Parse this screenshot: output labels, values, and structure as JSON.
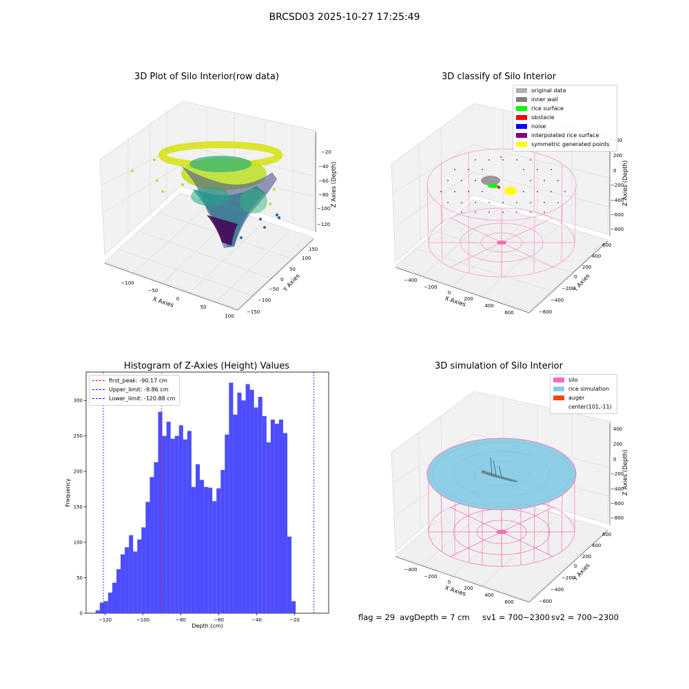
{
  "figure": {
    "suptitle": "BRCSD03 2025-10-27 17:25:49"
  },
  "footer": {
    "flag": "flag = 29",
    "avg_depth": "avgDepth = 7 cm",
    "sv1": "sv1 = 700~2300",
    "sv2": "sv2 = 700~2300"
  },
  "panel_raw": {
    "title": "3D Plot of Silo Interior(row data)",
    "xlabel": "X Axies",
    "ylabel": "Y Axies",
    "zlabel": "Z Axies (Depth)",
    "x_ticks": [
      "−100",
      "−50",
      "0",
      "50",
      "100"
    ],
    "y_ticks": [
      "150",
      "100",
      "50",
      "0",
      "−50",
      "−100",
      "−150"
    ],
    "z_ticks": [
      "−20",
      "−40",
      "−60",
      "−80",
      "−100",
      "−120"
    ]
  },
  "panel_classify": {
    "title": "3D classify of Silo Interior",
    "xlabel": "X Axies",
    "ylabel": "Y Axies",
    "zlabel": "Z Axies (Depth)",
    "x_ticks": [
      "−400",
      "−200",
      "0",
      "200",
      "400",
      "600"
    ],
    "y_ticks": [
      "600",
      "400",
      "200",
      "0",
      "−200",
      "−400",
      "−600"
    ],
    "z_ticks": [
      "400",
      "200",
      "0",
      "−200",
      "−400",
      "−600",
      "−800"
    ],
    "legend": [
      {
        "label": "original data",
        "color": "#b0b0b0"
      },
      {
        "label": "inner wall",
        "color": "#808080"
      },
      {
        "label": "rice surface",
        "color": "#00ff00"
      },
      {
        "label": "obstacle",
        "color": "#ff0000"
      },
      {
        "label": "noise",
        "color": "#0000ff"
      },
      {
        "label": "interpolated rice surface",
        "color": "#800080"
      },
      {
        "label": "symmetric generated points",
        "color": "#ffff00"
      }
    ]
  },
  "panel_sim": {
    "title": "3D simulation of Silo Interior",
    "xlabel": "X Axies",
    "ylabel": "Y Axies",
    "zlabel": "Z Axies (Depth)",
    "x_ticks": [
      "−400",
      "−200",
      "0",
      "200",
      "400",
      "600"
    ],
    "y_ticks": [
      "600",
      "400",
      "200",
      "0",
      "−200",
      "−400",
      "−600"
    ],
    "z_ticks": [
      "400",
      "200",
      "0",
      "−200",
      "−400",
      "−600",
      "−800"
    ],
    "legend": [
      {
        "label": "silo",
        "color": "#ff69b4"
      },
      {
        "label": "rice simulation",
        "color": "#87ceeb"
      },
      {
        "label": "auger",
        "color": "#ff4500"
      },
      {
        "label": "center(101,-11)",
        "color": "none"
      }
    ]
  },
  "chart_data": {
    "type": "bar",
    "title": "Histogram of Z-Axies (Height) Values",
    "xlabel": "Depth (cm)",
    "ylabel": "Frequency",
    "xlim": [
      -130,
      -2
    ],
    "ylim": [
      0,
      340
    ],
    "x_ticks": [
      -120,
      -100,
      -80,
      -60,
      -40,
      -20
    ],
    "x_tick_labels": [
      "−120",
      "−100",
      "−80",
      "−60",
      "−40",
      "−20"
    ],
    "y_ticks": [
      0,
      50,
      100,
      150,
      200,
      250,
      300
    ],
    "bar_color": "#4d4dff",
    "bins_start": -125,
    "bin_width": 2.2,
    "values": [
      4,
      15,
      17,
      29,
      43,
      62,
      83,
      93,
      110,
      87,
      104,
      121,
      157,
      192,
      213,
      284,
      250,
      270,
      246,
      250,
      265,
      245,
      257,
      178,
      210,
      188,
      178,
      177,
      158,
      176,
      202,
      252,
      325,
      280,
      311,
      300,
      323,
      315,
      290,
      305,
      278,
      241,
      273,
      267,
      273,
      254,
      108,
      17
    ],
    "vlines": [
      {
        "label": "first_peak: -90.17 cm",
        "x": -90.17,
        "color": "#ff0000"
      },
      {
        "label": "Upper_limit: -9.86 cm",
        "x": -9.86,
        "color": "#0000ff"
      },
      {
        "label": "Lower_limit: -120.88 cm",
        "x": -120.88,
        "color": "#0000ff"
      }
    ],
    "legend_position": "top-left"
  }
}
